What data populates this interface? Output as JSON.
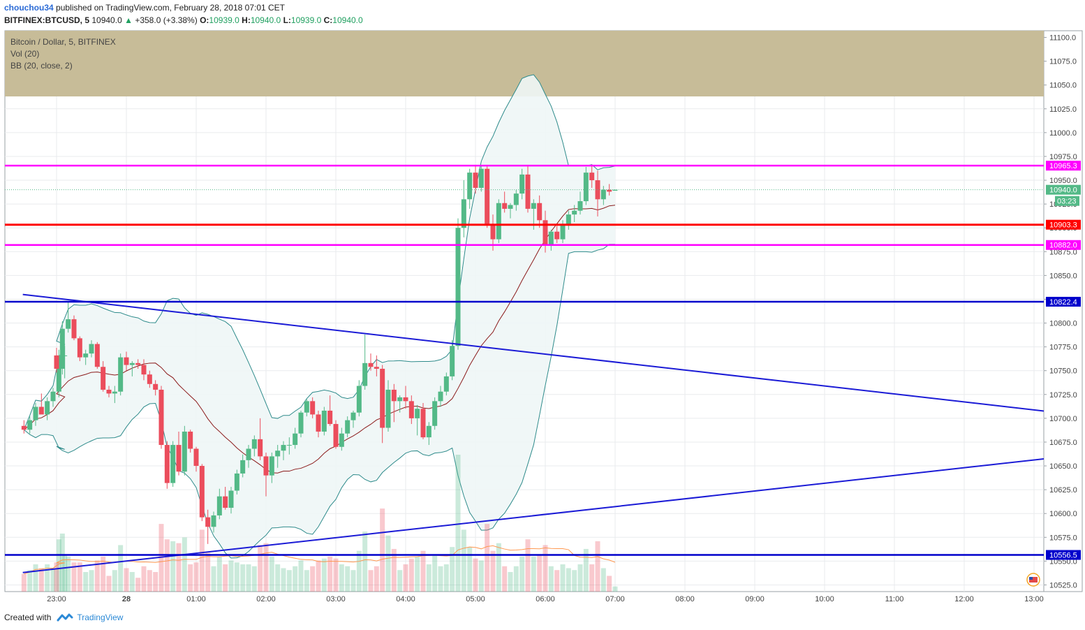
{
  "header": {
    "user": "chouchou34",
    "published": "published on TradingView.com, February 28, 2018 07:01 CET",
    "symbol": "BITFINEX:BTCUSD, 5",
    "last": "10940.0",
    "change_arrow": "▲",
    "change": "+358.0 (+3.38%)",
    "ohlc": [
      {
        "label": "O:",
        "value": "10939.0"
      },
      {
        "label": "H:",
        "value": "10940.0"
      },
      {
        "label": "L:",
        "value": "10939.0"
      },
      {
        "label": "C:",
        "value": "10940.0"
      }
    ]
  },
  "legend": {
    "title": "Bitcoin / Dollar, 5, BITFINEX",
    "vol": "Vol (20)",
    "bb": "BB (20, close, 2)"
  },
  "footer": {
    "created_with": "Created with",
    "brand": "TradingView"
  },
  "colors": {
    "up": "#53b987",
    "down": "#eb4d5c",
    "bb_band": "#2e8b8b",
    "bb_fill": "#eef6f6",
    "bb_basis": "#8b1a1a",
    "zone": "#c7bc98",
    "magenta": "#ff00ff",
    "red_level": "#ff0000",
    "blue_level": "#0000cc",
    "grid": "#e9ebee"
  },
  "chart_data": {
    "type": "candlestick",
    "y_axis_ticks": [
      "11100.0",
      "11075.0",
      "11050.0",
      "11025.0",
      "11000.0",
      "10975.0",
      "10950.0",
      "10925.0",
      "10900.0",
      "10875.0",
      "10850.0",
      "10825.0",
      "10800.0",
      "10775.0",
      "10750.0",
      "10725.0",
      "10700.0",
      "10675.0",
      "10650.0",
      "10625.0",
      "10600.0",
      "10575.0",
      "10550.0",
      "10525.0"
    ],
    "ylim": [
      10518,
      11107
    ],
    "x_axis_ticks": [
      "23:00",
      "28",
      "01:00",
      "02:00",
      "03:00",
      "04:00",
      "05:00",
      "06:00",
      "07:00",
      "08:00",
      "09:00",
      "10:00",
      "11:00",
      "12:00",
      "13:00"
    ],
    "horizontal_levels": [
      {
        "label": "10965.3",
        "value": 10965.3,
        "color": "#ff00ff"
      },
      {
        "label": "10903.3",
        "value": 10903.3,
        "color": "#ff0000"
      },
      {
        "label": "10882.0",
        "value": 10882.0,
        "color": "#ff00ff"
      },
      {
        "label": "10822.4",
        "value": 10822.4,
        "color": "#0000cc"
      },
      {
        "label": "10556.5",
        "value": 10556.5,
        "color": "#0000cc"
      }
    ],
    "last_price_label": "10940.0",
    "countdown_label": "03:23",
    "resistance_zone": [
      11038,
      11107
    ],
    "trend_lines": [
      {
        "from": [
          "22:19",
          10830
        ],
        "to": [
          "13:13",
          10707
        ]
      },
      {
        "from": [
          "22:19",
          10538
        ],
        "to": [
          "13:13",
          10658
        ]
      }
    ],
    "candles": [
      {
        "t": "22:20",
        "o": 10692,
        "h": 10698,
        "l": 10684,
        "c": 10688
      },
      {
        "t": "22:25",
        "o": 10688,
        "h": 10702,
        "l": 10684,
        "c": 10698
      },
      {
        "t": "22:30",
        "o": 10698,
        "h": 10716,
        "l": 10692,
        "c": 10712
      },
      {
        "t": "22:35",
        "o": 10712,
        "h": 10726,
        "l": 10706,
        "c": 10704
      },
      {
        "t": "22:40",
        "o": 10704,
        "h": 10722,
        "l": 10698,
        "c": 10718
      },
      {
        "t": "22:45",
        "o": 10718,
        "h": 10732,
        "l": 10712,
        "c": 10728
      },
      {
        "t": "22:50",
        "o": 10728,
        "h": 10772,
        "l": 10722,
        "c": 10766
      },
      {
        "t": "22:55",
        "o": 10766,
        "h": 10776,
        "l": 10742,
        "c": 10766
      },
      {
        "t": "23:00",
        "o": 10766,
        "h": 10774,
        "l": 10748,
        "c": 10752
      },
      {
        "t": "23:05",
        "o": 10752,
        "h": 10802,
        "l": 10746,
        "c": 10794
      },
      {
        "t": "23:10",
        "o": 10794,
        "h": 10822,
        "l": 10790,
        "c": 10804
      },
      {
        "t": "23:15",
        "o": 10804,
        "h": 10808,
        "l": 10782,
        "c": 10784
      },
      {
        "t": "23:20",
        "o": 10784,
        "h": 10786,
        "l": 10760,
        "c": 10764
      },
      {
        "t": "23:25",
        "o": 10764,
        "h": 10772,
        "l": 10756,
        "c": 10768
      },
      {
        "t": "23:30",
        "o": 10768,
        "h": 10782,
        "l": 10764,
        "c": 10778
      },
      {
        "t": "23:35",
        "o": 10778,
        "h": 10780,
        "l": 10752,
        "c": 10754
      },
      {
        "t": "23:40",
        "o": 10754,
        "h": 10760,
        "l": 10728,
        "c": 10730
      },
      {
        "t": "23:45",
        "o": 10730,
        "h": 10734,
        "l": 10722,
        "c": 10726
      },
      {
        "t": "23:50",
        "o": 10726,
        "h": 10734,
        "l": 10716,
        "c": 10728
      },
      {
        "t": "23:55",
        "o": 10728,
        "h": 10768,
        "l": 10724,
        "c": 10764
      },
      {
        "t": "00:00",
        "o": 10764,
        "h": 10770,
        "l": 10750,
        "c": 10756
      },
      {
        "t": "00:05",
        "o": 10756,
        "h": 10760,
        "l": 10744,
        "c": 10758
      },
      {
        "t": "00:10",
        "o": 10758,
        "h": 10762,
        "l": 10752,
        "c": 10756
      },
      {
        "t": "00:15",
        "o": 10756,
        "h": 10762,
        "l": 10740,
        "c": 10746
      },
      {
        "t": "00:20",
        "o": 10746,
        "h": 10750,
        "l": 10732,
        "c": 10736
      },
      {
        "t": "00:25",
        "o": 10736,
        "h": 10740,
        "l": 10724,
        "c": 10730
      },
      {
        "t": "00:30",
        "o": 10730,
        "h": 10734,
        "l": 10668,
        "c": 10672
      },
      {
        "t": "00:35",
        "o": 10672,
        "h": 10676,
        "l": 10626,
        "c": 10632
      },
      {
        "t": "00:40",
        "o": 10632,
        "h": 10676,
        "l": 10628,
        "c": 10672
      },
      {
        "t": "00:45",
        "o": 10672,
        "h": 10686,
        "l": 10640,
        "c": 10644
      },
      {
        "t": "00:50",
        "o": 10644,
        "h": 10692,
        "l": 10640,
        "c": 10686
      },
      {
        "t": "00:55",
        "o": 10686,
        "h": 10688,
        "l": 10664,
        "c": 10668
      },
      {
        "t": "01:00",
        "o": 10668,
        "h": 10670,
        "l": 10644,
        "c": 10650
      },
      {
        "t": "01:05",
        "o": 10650,
        "h": 10652,
        "l": 10592,
        "c": 10596
      },
      {
        "t": "01:10",
        "o": 10596,
        "h": 10604,
        "l": 10568,
        "c": 10586
      },
      {
        "t": "01:15",
        "o": 10586,
        "h": 10602,
        "l": 10580,
        "c": 10598
      },
      {
        "t": "01:20",
        "o": 10598,
        "h": 10626,
        "l": 10594,
        "c": 10618
      },
      {
        "t": "01:25",
        "o": 10618,
        "h": 10628,
        "l": 10604,
        "c": 10606
      },
      {
        "t": "01:30",
        "o": 10606,
        "h": 10628,
        "l": 10600,
        "c": 10624
      },
      {
        "t": "01:35",
        "o": 10624,
        "h": 10646,
        "l": 10620,
        "c": 10642
      },
      {
        "t": "01:40",
        "o": 10642,
        "h": 10662,
        "l": 10638,
        "c": 10656
      },
      {
        "t": "01:45",
        "o": 10656,
        "h": 10672,
        "l": 10648,
        "c": 10668
      },
      {
        "t": "01:50",
        "o": 10668,
        "h": 10682,
        "l": 10660,
        "c": 10678
      },
      {
        "t": "01:55",
        "o": 10678,
        "h": 10700,
        "l": 10656,
        "c": 10660
      },
      {
        "t": "02:00",
        "o": 10660,
        "h": 10664,
        "l": 10618,
        "c": 10640
      },
      {
        "t": "02:05",
        "o": 10640,
        "h": 10664,
        "l": 10632,
        "c": 10660
      },
      {
        "t": "02:10",
        "o": 10660,
        "h": 10672,
        "l": 10648,
        "c": 10666
      },
      {
        "t": "02:15",
        "o": 10666,
        "h": 10676,
        "l": 10656,
        "c": 10672
      },
      {
        "t": "02:20",
        "o": 10672,
        "h": 10680,
        "l": 10662,
        "c": 10672
      },
      {
        "t": "02:25",
        "o": 10672,
        "h": 10690,
        "l": 10668,
        "c": 10684
      },
      {
        "t": "02:30",
        "o": 10684,
        "h": 10708,
        "l": 10680,
        "c": 10706
      },
      {
        "t": "02:35",
        "o": 10706,
        "h": 10720,
        "l": 10702,
        "c": 10718
      },
      {
        "t": "02:40",
        "o": 10718,
        "h": 10722,
        "l": 10700,
        "c": 10704
      },
      {
        "t": "02:45",
        "o": 10704,
        "h": 10708,
        "l": 10680,
        "c": 10686
      },
      {
        "t": "02:50",
        "o": 10686,
        "h": 10712,
        "l": 10682,
        "c": 10708
      },
      {
        "t": "02:55",
        "o": 10708,
        "h": 10724,
        "l": 10692,
        "c": 10694
      },
      {
        "t": "03:00",
        "o": 10694,
        "h": 10698,
        "l": 10668,
        "c": 10670
      },
      {
        "t": "03:05",
        "o": 10670,
        "h": 10690,
        "l": 10666,
        "c": 10684
      },
      {
        "t": "03:10",
        "o": 10684,
        "h": 10702,
        "l": 10680,
        "c": 10698
      },
      {
        "t": "03:15",
        "o": 10698,
        "h": 10708,
        "l": 10690,
        "c": 10706
      },
      {
        "t": "03:20",
        "o": 10706,
        "h": 10740,
        "l": 10702,
        "c": 10734
      },
      {
        "t": "03:25",
        "o": 10734,
        "h": 10788,
        "l": 10730,
        "c": 10758
      },
      {
        "t": "03:30",
        "o": 10758,
        "h": 10768,
        "l": 10750,
        "c": 10754
      },
      {
        "t": "03:35",
        "o": 10754,
        "h": 10766,
        "l": 10744,
        "c": 10752
      },
      {
        "t": "03:40",
        "o": 10752,
        "h": 10756,
        "l": 10674,
        "c": 10690
      },
      {
        "t": "03:45",
        "o": 10690,
        "h": 10740,
        "l": 10686,
        "c": 10730
      },
      {
        "t": "03:50",
        "o": 10730,
        "h": 10736,
        "l": 10696,
        "c": 10718
      },
      {
        "t": "03:55",
        "o": 10718,
        "h": 10724,
        "l": 10706,
        "c": 10722
      },
      {
        "t": "04:00",
        "o": 10722,
        "h": 10734,
        "l": 10710,
        "c": 10718
      },
      {
        "t": "04:05",
        "o": 10718,
        "h": 10724,
        "l": 10694,
        "c": 10700
      },
      {
        "t": "04:10",
        "o": 10700,
        "h": 10714,
        "l": 10682,
        "c": 10710
      },
      {
        "t": "04:15",
        "o": 10710,
        "h": 10716,
        "l": 10678,
        "c": 10680
      },
      {
        "t": "04:20",
        "o": 10680,
        "h": 10696,
        "l": 10672,
        "c": 10692
      },
      {
        "t": "04:25",
        "o": 10692,
        "h": 10722,
        "l": 10688,
        "c": 10718
      },
      {
        "t": "04:30",
        "o": 10718,
        "h": 10734,
        "l": 10712,
        "c": 10728
      },
      {
        "t": "04:35",
        "o": 10728,
        "h": 10748,
        "l": 10724,
        "c": 10744
      },
      {
        "t": "04:40",
        "o": 10744,
        "h": 10782,
        "l": 10740,
        "c": 10776
      },
      {
        "t": "04:45",
        "o": 10776,
        "h": 10910,
        "l": 10772,
        "c": 10900
      },
      {
        "t": "04:50",
        "o": 10900,
        "h": 10950,
        "l": 10890,
        "c": 10930
      },
      {
        "t": "04:55",
        "o": 10930,
        "h": 10962,
        "l": 10920,
        "c": 10958
      },
      {
        "t": "05:00",
        "o": 10958,
        "h": 10966,
        "l": 10936,
        "c": 10942
      },
      {
        "t": "05:05",
        "o": 10942,
        "h": 10966,
        "l": 10938,
        "c": 10962
      },
      {
        "t": "05:10",
        "o": 10962,
        "h": 10966,
        "l": 10900,
        "c": 10904
      },
      {
        "t": "05:15",
        "o": 10904,
        "h": 10914,
        "l": 10876,
        "c": 10888
      },
      {
        "t": "05:20",
        "o": 10888,
        "h": 10930,
        "l": 10884,
        "c": 10926
      },
      {
        "t": "05:25",
        "o": 10926,
        "h": 10938,
        "l": 10916,
        "c": 10920
      },
      {
        "t": "05:30",
        "o": 10920,
        "h": 10926,
        "l": 10910,
        "c": 10924
      },
      {
        "t": "05:35",
        "o": 10924,
        "h": 10940,
        "l": 10918,
        "c": 10936
      },
      {
        "t": "05:40",
        "o": 10936,
        "h": 10962,
        "l": 10930,
        "c": 10956
      },
      {
        "t": "05:45",
        "o": 10956,
        "h": 10966,
        "l": 10916,
        "c": 10920
      },
      {
        "t": "05:50",
        "o": 10920,
        "h": 10930,
        "l": 10898,
        "c": 10926
      },
      {
        "t": "05:55",
        "o": 10926,
        "h": 10934,
        "l": 10900,
        "c": 10908
      },
      {
        "t": "06:00",
        "o": 10908,
        "h": 10918,
        "l": 10874,
        "c": 10882
      },
      {
        "t": "06:05",
        "o": 10882,
        "h": 10898,
        "l": 10876,
        "c": 10896
      },
      {
        "t": "06:10",
        "o": 10896,
        "h": 10902,
        "l": 10884,
        "c": 10888
      },
      {
        "t": "06:15",
        "o": 10888,
        "h": 10908,
        "l": 10884,
        "c": 10904
      },
      {
        "t": "06:20",
        "o": 10904,
        "h": 10918,
        "l": 10898,
        "c": 10914
      },
      {
        "t": "06:25",
        "o": 10914,
        "h": 10924,
        "l": 10906,
        "c": 10918
      },
      {
        "t": "06:30",
        "o": 10918,
        "h": 10938,
        "l": 10914,
        "c": 10928
      },
      {
        "t": "06:35",
        "o": 10928,
        "h": 10964,
        "l": 10924,
        "c": 10958
      },
      {
        "t": "06:40",
        "o": 10958,
        "h": 10966,
        "l": 10942,
        "c": 10950
      },
      {
        "t": "06:45",
        "o": 10950,
        "h": 10960,
        "l": 10912,
        "c": 10930
      },
      {
        "t": "06:50",
        "o": 10930,
        "h": 10944,
        "l": 10924,
        "c": 10940
      },
      {
        "t": "06:55",
        "o": 10940,
        "h": 10946,
        "l": 10934,
        "c": 10938
      },
      {
        "t": "07:00",
        "o": 10939,
        "h": 10940,
        "l": 10939,
        "c": 10940
      }
    ]
  }
}
